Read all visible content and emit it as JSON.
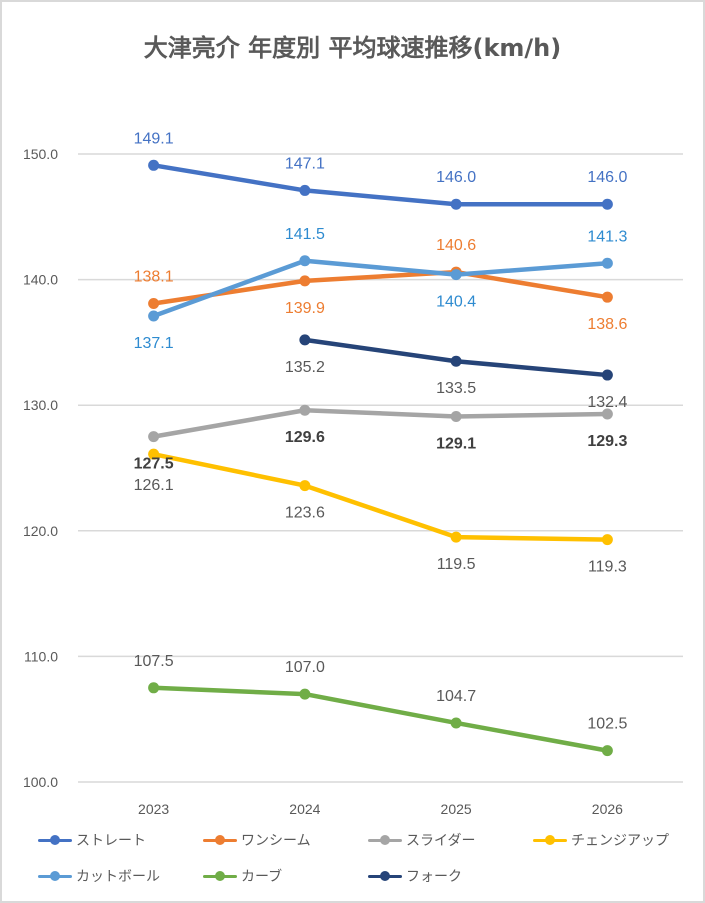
{
  "chart_data": {
    "type": "line",
    "title": "大津亮介 年度別 平均球速推移(km/h)",
    "xlabel": "",
    "ylabel": "",
    "categories": [
      "2023",
      "2024",
      "2025",
      "2026"
    ],
    "ylim": [
      100,
      150
    ],
    "yticks": [
      "100.0",
      "110.0",
      "120.0",
      "130.0",
      "140.0",
      "150.0"
    ],
    "grid": true,
    "legend_position": "bottom",
    "series": [
      {
        "name": "ストレート",
        "color": "#4472c4",
        "values": [
          149.1,
          147.1,
          146.0,
          146.0
        ],
        "labels": [
          "149.1",
          "147.1",
          "146.0",
          "146.0"
        ],
        "label_color": "#4472c4",
        "label_pos": [
          "above",
          "above",
          "above",
          "above"
        ]
      },
      {
        "name": "ワンシーム",
        "color": "#ed7d31",
        "values": [
          138.1,
          139.9,
          140.6,
          138.6
        ],
        "labels": [
          "138.1",
          "139.9",
          "140.6",
          "138.6"
        ],
        "label_color": "#ed7d31",
        "label_pos": [
          "above",
          "below",
          "above",
          "below"
        ]
      },
      {
        "name": "スライダー",
        "color": "#a5a5a5",
        "values": [
          127.5,
          129.6,
          129.1,
          129.3
        ],
        "labels": [
          "127.5",
          "129.6",
          "129.1",
          "129.3"
        ],
        "label_color": "#404040",
        "label_bold": true,
        "label_pos": [
          "below",
          "below",
          "below",
          "below"
        ]
      },
      {
        "name": "チェンジアップ",
        "color": "#ffc000",
        "values": [
          126.1,
          123.6,
          119.5,
          119.3
        ],
        "labels": [
          "126.1",
          "123.6",
          "119.5",
          "119.3"
        ],
        "label_color": "#595959",
        "label_pos": [
          "below2",
          "below",
          "below",
          "below"
        ]
      },
      {
        "name": "カットボール",
        "color": "#5b9bd5",
        "values": [
          137.1,
          141.5,
          140.4,
          141.3
        ],
        "labels": [
          "137.1",
          "141.5",
          "140.4",
          "141.3"
        ],
        "label_color": "#2e8bd0",
        "label_pos": [
          "below",
          "above",
          "below",
          "above"
        ]
      },
      {
        "name": "カーブ",
        "color": "#70ad47",
        "values": [
          107.5,
          107.0,
          104.7,
          102.5
        ],
        "labels": [
          "107.5",
          "107.0",
          "104.7",
          "102.5"
        ],
        "label_color": "#595959",
        "label_pos": [
          "above",
          "above",
          "above",
          "above"
        ]
      },
      {
        "name": "フォーク",
        "color": "#264478",
        "values": [
          null,
          135.2,
          133.5,
          132.4
        ],
        "labels": [
          null,
          "135.2",
          "133.5",
          "132.4"
        ],
        "label_color": "#595959",
        "label_pos": [
          "below",
          "below",
          "below",
          "below"
        ]
      }
    ]
  }
}
